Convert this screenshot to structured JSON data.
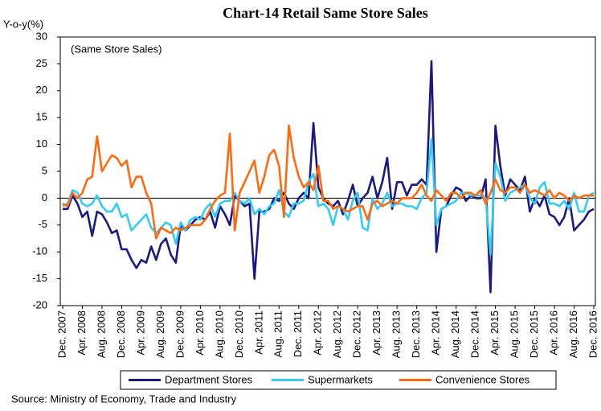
{
  "chart_data": {
    "type": "line",
    "title": "Chart-14 Retail Same Store Sales",
    "y_label": "Y-o-y(%)",
    "annotation": "(Same Store Sales)",
    "source": "Source: Ministry of Economy, Trade and Industry",
    "categories": [
      "Dec. 2007",
      null,
      null,
      null,
      "Apr. 2008",
      null,
      null,
      null,
      "Aug. 2008",
      null,
      null,
      null,
      "Dec. 2008",
      null,
      null,
      null,
      "Apr. 2009",
      null,
      null,
      null,
      "Aug. 2009",
      null,
      null,
      null,
      "Dec. 2009",
      null,
      null,
      null,
      "Apr. 2010",
      null,
      null,
      null,
      "Aug. 2010",
      null,
      null,
      null,
      "Dec. 2010",
      null,
      null,
      null,
      "Apr. 2011",
      null,
      null,
      null,
      "Aug. 2011",
      null,
      null,
      null,
      "Dec. 2011",
      null,
      null,
      null,
      "Apr. 2012",
      null,
      null,
      null,
      "Aug. 2012",
      null,
      null,
      null,
      "Dec. 2012",
      null,
      null,
      null,
      "Apr. 2013",
      null,
      null,
      null,
      "Aug. 2013",
      null,
      null,
      null,
      "Dec. 2013",
      null,
      null,
      null,
      "Apr. 2014",
      null,
      null,
      null,
      "Aug. 2014",
      null,
      null,
      null,
      "Dec. 2014",
      null,
      null,
      null,
      "Apr. 2015",
      null,
      null,
      null,
      "Aug. 2015",
      null,
      null,
      null,
      "Dec. 2015",
      null,
      null,
      null,
      "Apr. 2016",
      null,
      null,
      null,
      "Aug. 2016",
      null,
      null,
      null,
      "Dec. 2016"
    ],
    "series": [
      {
        "name": "Department Stores",
        "color": "#1a1a80",
        "values": [
          -2,
          -2,
          0.5,
          -1,
          -3.5,
          -2.5,
          -7,
          -2.5,
          -3,
          -4.5,
          -6.5,
          -6,
          -9.5,
          -9.5,
          -11.5,
          -13,
          -11.5,
          -12,
          -9,
          -11.5,
          -8.5,
          -7.5,
          -10.5,
          -12,
          -5,
          -6,
          -5,
          -4,
          -3.5,
          -4,
          -2.5,
          -5.5,
          -1.5,
          -3,
          -5,
          0.5,
          -0.5,
          -1.5,
          -1,
          -15,
          -2.5,
          -2.5,
          -2,
          0,
          -0.5,
          1,
          -1,
          -2,
          0,
          1,
          0,
          14,
          2,
          0,
          -1,
          -1.5,
          -0.5,
          -3,
          -0.5,
          2.5,
          -1.5,
          0,
          1,
          4,
          0,
          3,
          7.5,
          -2,
          3,
          3,
          0.5,
          2.5,
          2.5,
          3.5,
          2.5,
          25.5,
          -10,
          -2,
          -1.5,
          0.5,
          2,
          1.5,
          -0.5,
          0.5,
          0,
          0,
          3.5,
          -17.5,
          13.5,
          6,
          0.5,
          3.5,
          2.5,
          1.5,
          4,
          -2.5,
          0,
          -1.5,
          0.5,
          -3,
          -3.5,
          -5,
          -3.5,
          0,
          -6,
          -5,
          -4,
          -2.5,
          -2
        ]
      },
      {
        "name": "Supermarkets",
        "color": "#33ccf5",
        "values": [
          -1.5,
          -1,
          1.5,
          1,
          -1,
          -1.5,
          -1,
          0.5,
          -1.5,
          -2.5,
          -2.5,
          -1,
          -3.5,
          -3,
          -6,
          -5,
          -4,
          -3,
          -5.5,
          -6.5,
          -5.5,
          -4.5,
          -5,
          -8.5,
          -4.5,
          -6,
          -4,
          -3.5,
          -4,
          -2,
          -1,
          -3.5,
          -1,
          -0.5,
          -0.5,
          1,
          -0.5,
          -1,
          0,
          -3,
          -2,
          -3,
          -1.5,
          -1,
          1.5,
          -2.5,
          -3.5,
          -1,
          -1,
          -0.5,
          3,
          4.5,
          -1.5,
          -1,
          -2,
          -5,
          -1.5,
          -2,
          -4,
          -0.5,
          1,
          -5.5,
          -6,
          0,
          -2,
          -1,
          1,
          -1.5,
          -1,
          -1,
          -1.5,
          -1.5,
          -2,
          0,
          1,
          11,
          -5,
          -2,
          -1.5,
          -1,
          -0.5,
          1,
          1,
          0.5,
          0.5,
          0.5,
          0,
          -10.5,
          6.5,
          4,
          -0.5,
          1,
          1.5,
          2,
          2.5,
          0,
          -1,
          2,
          3,
          -1,
          -1,
          -1.5,
          -0.5,
          -2,
          1,
          -2.5,
          -2.5,
          0.5,
          1
        ]
      },
      {
        "name": "Convenience Stores",
        "color": "#ff6a10",
        "values": [
          -1,
          -1.5,
          1,
          0,
          1,
          3.5,
          4,
          11.5,
          5,
          6.5,
          8,
          7.5,
          6,
          7,
          2,
          4,
          4,
          1,
          -1,
          -7.5,
          -5.5,
          -6,
          -6.5,
          -5.5,
          -6,
          -5.5,
          -5,
          -5,
          -5,
          -4,
          -2,
          -0.5,
          0.5,
          1,
          12,
          -6,
          1,
          3,
          5,
          7,
          1,
          4,
          8,
          9,
          6,
          -3.5,
          13.5,
          7.5,
          4,
          2,
          3,
          1.5,
          6,
          -0.5,
          -0.5,
          -2,
          -1.5,
          -2,
          -2.5,
          -2,
          -1.5,
          -1.5,
          -4,
          -1,
          -0.5,
          -1.5,
          -1,
          -0.5,
          -1,
          0,
          0,
          0,
          1,
          2.5,
          0.5,
          -0.5,
          1.5,
          0.5,
          -0.5,
          1,
          1,
          0,
          1,
          1,
          0.5,
          1.5,
          -1,
          1,
          3.5,
          1.5,
          1,
          2,
          2,
          1,
          2.5,
          1,
          1.5,
          1,
          0.5,
          1.5,
          0,
          1,
          0.5,
          -0.5,
          0.5,
          0,
          0.5,
          0.5,
          0.5
        ]
      }
    ],
    "ylim": [
      -20,
      30
    ],
    "yticks": [
      -20,
      -15,
      -10,
      -5,
      0,
      5,
      10,
      15,
      20,
      25,
      30
    ],
    "legend": "bottom"
  }
}
